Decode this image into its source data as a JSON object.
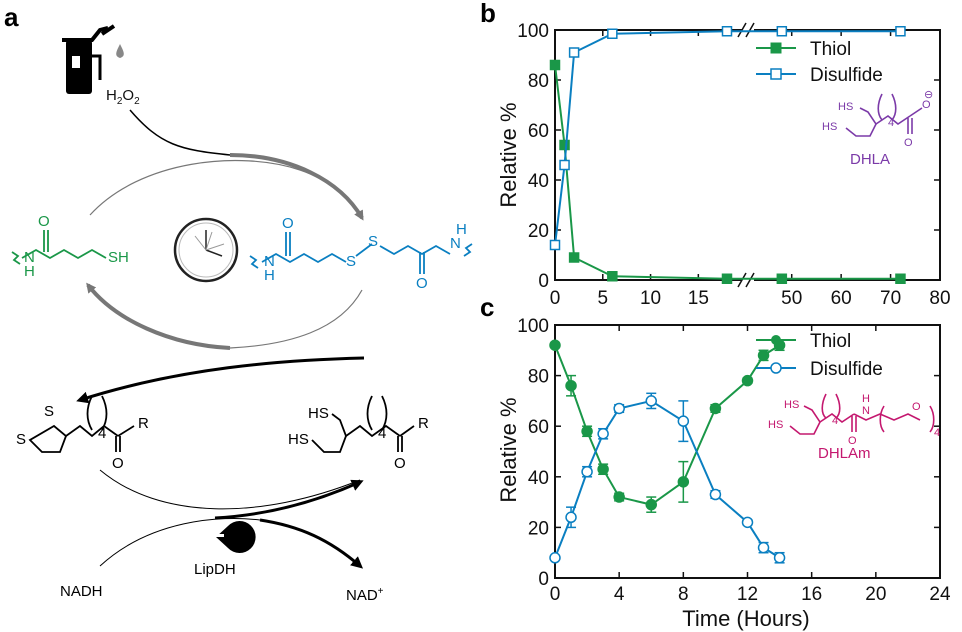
{
  "panels": {
    "a": "a",
    "b": "b",
    "c": "c"
  },
  "scheme": {
    "h2o2": {
      "h": "H",
      "sub1": "2",
      "o": "O",
      "sub2": "2"
    },
    "thiol_sh": "SH",
    "thiol_nh": "N",
    "thiol_h": "H",
    "thiol_o": "O",
    "disulfide_s1": "S",
    "disulfide_s2": "S",
    "disulfide_nh_left_n": "N",
    "disulfide_nh_left_h": "H",
    "disulfide_nh_right_n": "N",
    "disulfide_nh_right_h": "H",
    "disulfide_o1": "O",
    "disulfide_o2": "O",
    "lipo_s1": "S",
    "lipo_s2": "S",
    "lipo_sub": "4",
    "lipo_o": "O",
    "lipo_r": "R",
    "dhl_sh1": "HS",
    "dhl_sh2": "HS",
    "dhl_sub": "4",
    "dhl_o": "O",
    "dhl_r": "R",
    "nadh": "NADH",
    "nad": "NAD",
    "nad_sup": "+",
    "enzyme": "LipDH",
    "enzyme_icon": "pacman-e-icon",
    "fuel_icon": "fuel-pump-icon",
    "clock_icon": "clock-icon"
  },
  "colors": {
    "green": "#1a9748",
    "blue": "#0a7fc1",
    "purple": "#7b3aa8",
    "magenta": "#c4186f",
    "gray": "#777777"
  },
  "chart_data": [
    {
      "id": "b",
      "type": "line",
      "ylabel": "Relative %",
      "xlabel": "",
      "xlim": [
        0,
        80
      ],
      "ylim": [
        0,
        100
      ],
      "axis_break": "between 18 and 45",
      "xticks": [
        "0",
        "5",
        "10",
        "15",
        "50",
        "60",
        "70",
        "80"
      ],
      "yticks": [
        "0",
        "20",
        "40",
        "60",
        "80",
        "100"
      ],
      "legend_position": "top-right",
      "series": [
        {
          "name": "Thiol",
          "marker": "filled-square",
          "x": [
            0,
            1,
            2,
            6,
            18,
            48,
            72
          ],
          "y": [
            86,
            54,
            9,
            1.5,
            0.5,
            0.5,
            0.5
          ]
        },
        {
          "name": "Disulfide",
          "marker": "open-square",
          "x": [
            0,
            1,
            2,
            6,
            18,
            48,
            72
          ],
          "y": [
            14,
            46,
            91,
            98.5,
            99.5,
            99.5,
            99.5
          ]
        }
      ],
      "molecule": {
        "label": "DHLA",
        "sh1": "HS",
        "sh2": "HS",
        "sub": "4",
        "o1": "O",
        "o2": "O",
        "charge": "⊖"
      }
    },
    {
      "id": "c",
      "type": "line",
      "ylabel": "Relative %",
      "xlabel": "Time (Hours)",
      "xlim": [
        0,
        24
      ],
      "ylim": [
        0,
        100
      ],
      "xticks": [
        "0",
        "4",
        "8",
        "12",
        "16",
        "20",
        "24"
      ],
      "yticks": [
        "0",
        "20",
        "40",
        "60",
        "80",
        "100"
      ],
      "legend_position": "top-right",
      "series": [
        {
          "name": "Thiol",
          "marker": "filled-circle",
          "x": [
            0,
            1,
            2,
            3,
            4,
            6,
            8,
            10,
            12,
            13,
            14
          ],
          "y": [
            92,
            76,
            58,
            43,
            32,
            29,
            38,
            67,
            78,
            88,
            92
          ],
          "err": [
            0,
            4,
            2,
            2,
            1.5,
            3,
            8,
            1.5,
            1,
            2,
            2
          ]
        },
        {
          "name": "Disulfide",
          "marker": "open-circle",
          "x": [
            0,
            1,
            2,
            3,
            4,
            6,
            8,
            10,
            12,
            13,
            14
          ],
          "y": [
            8,
            24,
            42,
            57,
            67,
            70,
            62,
            33,
            22,
            12,
            8
          ],
          "err": [
            0,
            4,
            2,
            2,
            1.5,
            3,
            8,
            1.5,
            1,
            2,
            2
          ]
        }
      ],
      "molecule": {
        "label": "DHLAm",
        "sh1": "HS",
        "sh2": "HS",
        "sub": "4",
        "o": "O",
        "nh_n": "N",
        "nh_h": "H",
        "o2": "O",
        "sub2": "4"
      }
    }
  ]
}
